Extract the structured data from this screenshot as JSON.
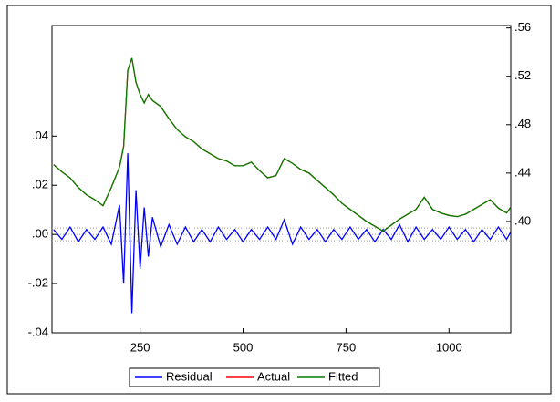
{
  "chart_data": {
    "type": "line",
    "x": [
      40,
      60,
      80,
      100,
      120,
      140,
      160,
      180,
      200,
      210,
      220,
      230,
      240,
      250,
      260,
      270,
      280,
      300,
      320,
      340,
      360,
      380,
      400,
      420,
      440,
      460,
      480,
      500,
      520,
      540,
      560,
      580,
      600,
      620,
      640,
      660,
      680,
      700,
      720,
      740,
      760,
      780,
      800,
      820,
      840,
      860,
      880,
      900,
      920,
      940,
      960,
      980,
      1000,
      1020,
      1040,
      1060,
      1080,
      1100,
      1120,
      1140,
      1150
    ],
    "series": [
      {
        "name": "Residual",
        "color": "#0000ff",
        "axis": "y",
        "values": [
          0.002,
          -0.002,
          0.003,
          -0.003,
          0.002,
          -0.002,
          0.003,
          -0.004,
          0.012,
          -0.02,
          0.033,
          -0.032,
          0.018,
          -0.014,
          0.011,
          -0.009,
          0.007,
          -0.005,
          0.004,
          -0.004,
          0.003,
          -0.003,
          0.002,
          -0.003,
          0.003,
          -0.002,
          0.002,
          -0.003,
          0.002,
          -0.002,
          0.003,
          -0.002,
          0.006,
          -0.004,
          0.003,
          -0.002,
          0.002,
          -0.003,
          0.002,
          -0.002,
          0.003,
          -0.002,
          0.002,
          -0.003,
          0.002,
          -0.002,
          0.004,
          -0.003,
          0.003,
          -0.002,
          0.002,
          -0.002,
          0.003,
          -0.002,
          0.002,
          -0.003,
          0.002,
          -0.002,
          0.003,
          -0.002,
          0.001
        ]
      },
      {
        "name": "Actual",
        "color": "#ff0000",
        "axis": "y2",
        "values": [
          0.447,
          0.441,
          0.436,
          0.428,
          0.422,
          0.418,
          0.413,
          0.428,
          0.445,
          0.462,
          0.525,
          0.535,
          0.515,
          0.505,
          0.498,
          0.505,
          0.5,
          0.495,
          0.485,
          0.476,
          0.47,
          0.466,
          0.46,
          0.456,
          0.452,
          0.45,
          0.446,
          0.446,
          0.449,
          0.442,
          0.436,
          0.438,
          0.452,
          0.448,
          0.443,
          0.44,
          0.434,
          0.428,
          0.422,
          0.415,
          0.41,
          0.405,
          0.4,
          0.396,
          0.392,
          0.397,
          0.402,
          0.406,
          0.41,
          0.42,
          0.41,
          0.407,
          0.405,
          0.404,
          0.406,
          0.41,
          0.414,
          0.418,
          0.411,
          0.407,
          0.412
        ]
      },
      {
        "name": "Fitted",
        "color": "#008000",
        "axis": "y2",
        "values": [
          0.447,
          0.441,
          0.436,
          0.428,
          0.422,
          0.418,
          0.413,
          0.428,
          0.445,
          0.462,
          0.525,
          0.535,
          0.515,
          0.505,
          0.498,
          0.505,
          0.5,
          0.495,
          0.485,
          0.476,
          0.47,
          0.466,
          0.46,
          0.456,
          0.452,
          0.45,
          0.446,
          0.446,
          0.449,
          0.442,
          0.436,
          0.438,
          0.452,
          0.448,
          0.443,
          0.44,
          0.434,
          0.428,
          0.422,
          0.415,
          0.41,
          0.405,
          0.4,
          0.396,
          0.392,
          0.397,
          0.402,
          0.406,
          0.41,
          0.42,
          0.41,
          0.407,
          0.405,
          0.404,
          0.406,
          0.41,
          0.414,
          0.418,
          0.411,
          0.407,
          0.412
        ]
      }
    ],
    "xlim": [
      36,
      1150
    ],
    "xticks": [
      250,
      500,
      750,
      1000
    ],
    "ylim": [
      -0.04,
      0.085
    ],
    "yticks": [
      {
        "value": -0.04,
        "label": "-.04"
      },
      {
        "value": -0.02,
        "label": "-.02"
      },
      {
        "value": 0,
        "label": ".00"
      },
      {
        "value": 0.02,
        "label": ".02"
      },
      {
        "value": 0.04,
        "label": ".04"
      }
    ],
    "y2lim": [
      0.308,
      0.562
    ],
    "y2ticks": [
      {
        "value": 0.4,
        "label": ".40"
      },
      {
        "value": 0.44,
        "label": ".44"
      },
      {
        "value": 0.48,
        "label": ".48"
      },
      {
        "value": 0.52,
        "label": ".52"
      },
      {
        "value": 0.56,
        "label": ".56"
      }
    ],
    "reference_lines": [
      -0.0026,
      0,
      0.0026
    ],
    "legend": "bottom"
  }
}
